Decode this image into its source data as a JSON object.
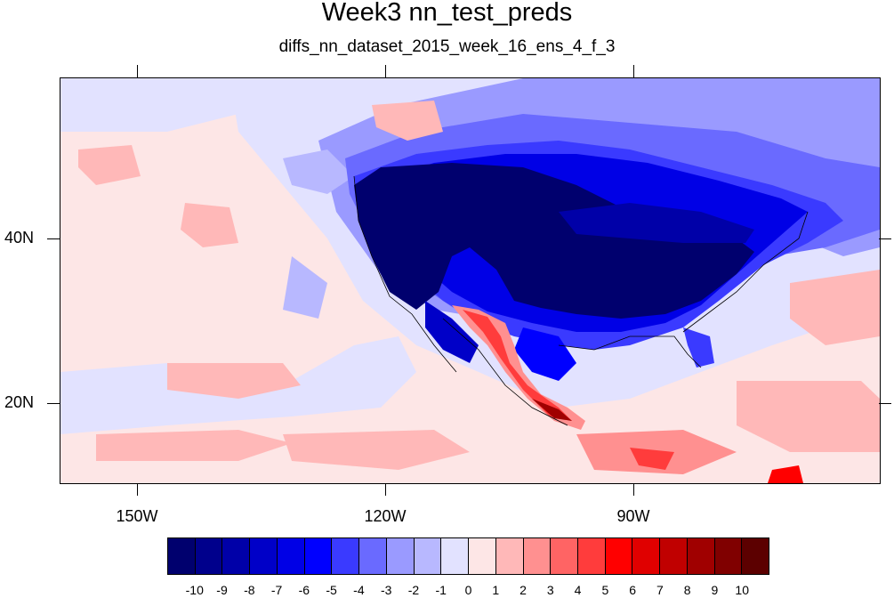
{
  "title": "Week3 nn_test_preds",
  "subtitle": "diffs_nn_dataset_2015_week_16_ens_4_f_3",
  "axes": {
    "x_labels": [
      "150W",
      "120W",
      "90W"
    ],
    "y_labels": [
      "40N",
      "20N"
    ]
  },
  "colorbar": {
    "labels": [
      "-10",
      "-9",
      "-8",
      "-7",
      "-6",
      "-5",
      "-4",
      "-3",
      "-2",
      "-1",
      "0",
      "1",
      "2",
      "3",
      "4",
      "5",
      "6",
      "7",
      "8",
      "9",
      "10"
    ],
    "colors": [
      "#00006e",
      "#00008c",
      "#0000a8",
      "#0000c8",
      "#0000e6",
      "#0000ff",
      "#3a3aff",
      "#6a6aff",
      "#9a9aff",
      "#b8b8ff",
      "#e2e2ff",
      "#fde6e6",
      "#ffb8b8",
      "#ff9090",
      "#ff6464",
      "#ff3c3c",
      "#ff0000",
      "#e00000",
      "#c00000",
      "#a00000",
      "#800000",
      "#5c0000"
    ]
  }
}
